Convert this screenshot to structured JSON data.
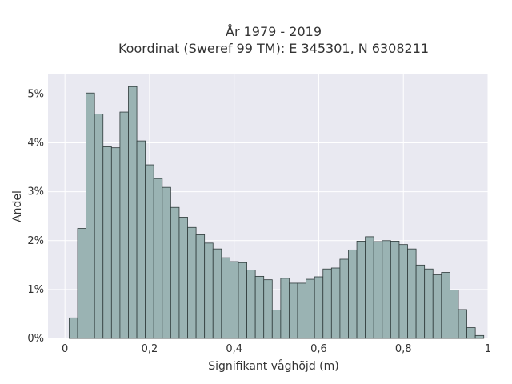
{
  "chart_data": {
    "type": "bar",
    "title_lines": [
      "År 1979 - 2019",
      "Koordinat (Sweref 99 TM): E 345301, N 6308211"
    ],
    "xlabel": "Signifikant våghöjd (m)",
    "ylabel": "Andel",
    "xlim": [
      -0.04,
      1.0
    ],
    "ylim": [
      0,
      5.4
    ],
    "x_ticks": [
      0,
      0.2,
      0.4,
      0.6,
      0.8,
      1.0
    ],
    "x_tick_labels": [
      "0",
      "0,2",
      "0,4",
      "0,6",
      "0,8",
      "1"
    ],
    "y_ticks": [
      0,
      1,
      2,
      3,
      4,
      5
    ],
    "y_tick_labels": [
      "0%",
      "1%",
      "2%",
      "3%",
      "4%",
      "5%"
    ],
    "bin_width": 0.02,
    "bin_starts": [
      0.01,
      0.03,
      0.05,
      0.07,
      0.09,
      0.11,
      0.13,
      0.15,
      0.17,
      0.19,
      0.21,
      0.23,
      0.25,
      0.27,
      0.29,
      0.31,
      0.33,
      0.35,
      0.37,
      0.39,
      0.41,
      0.43,
      0.45,
      0.47,
      0.49,
      0.51,
      0.53,
      0.55,
      0.57,
      0.59,
      0.61,
      0.63,
      0.65,
      0.67,
      0.69,
      0.71,
      0.73,
      0.75,
      0.77,
      0.79,
      0.81,
      0.83,
      0.85,
      0.87,
      0.89,
      0.91,
      0.93,
      0.95,
      0.97
    ],
    "values": [
      0.42,
      2.25,
      5.02,
      4.59,
      3.92,
      3.9,
      4.63,
      5.15,
      4.04,
      3.55,
      3.27,
      3.09,
      2.68,
      2.48,
      2.27,
      2.12,
      1.95,
      1.83,
      1.65,
      1.57,
      1.55,
      1.4,
      1.27,
      1.2,
      0.58,
      1.23,
      1.13,
      1.13,
      1.21,
      1.26,
      1.42,
      1.44,
      1.62,
      1.81,
      1.99,
      2.08,
      1.98,
      2.0,
      1.99,
      1.92,
      1.83,
      1.5,
      1.42,
      1.3,
      1.35,
      0.99,
      0.59,
      0.22,
      0.06
    ],
    "colors": {
      "bar_fill": "#9ab3b3",
      "bar_stroke": "#2f3b3b",
      "plot_background": "#e9e9f1",
      "grid": "#ffffff"
    }
  }
}
